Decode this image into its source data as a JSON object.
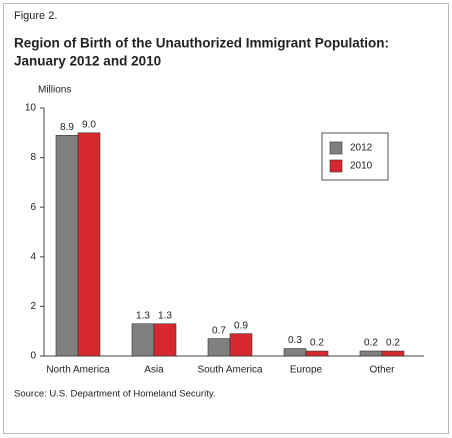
{
  "chart_data": {
    "type": "bar",
    "figure_label": "Figure 2.",
    "title": [
      "Region of Birth of the Unauthorized Immigrant Population:",
      "January 2012 and 2010"
    ],
    "y_label": "Millions",
    "categories": [
      "North America",
      "Asia",
      "South America",
      "Europe",
      "Other"
    ],
    "series": [
      {
        "name": "2012",
        "color": "#808080",
        "values": [
          8.9,
          1.3,
          0.7,
          0.3,
          0.2
        ]
      },
      {
        "name": "2010",
        "color": "#d7282f",
        "values": [
          9.0,
          1.3,
          0.9,
          0.2,
          0.2
        ],
        "value_labels": [
          "9.0",
          "1.3",
          "0.9",
          "0.2",
          "0.2"
        ]
      }
    ],
    "ylim": [
      0,
      10
    ],
    "yticks": [
      0,
      2,
      4,
      6,
      8,
      10
    ],
    "source": "Source: U.S. Department of Homeland Security."
  }
}
